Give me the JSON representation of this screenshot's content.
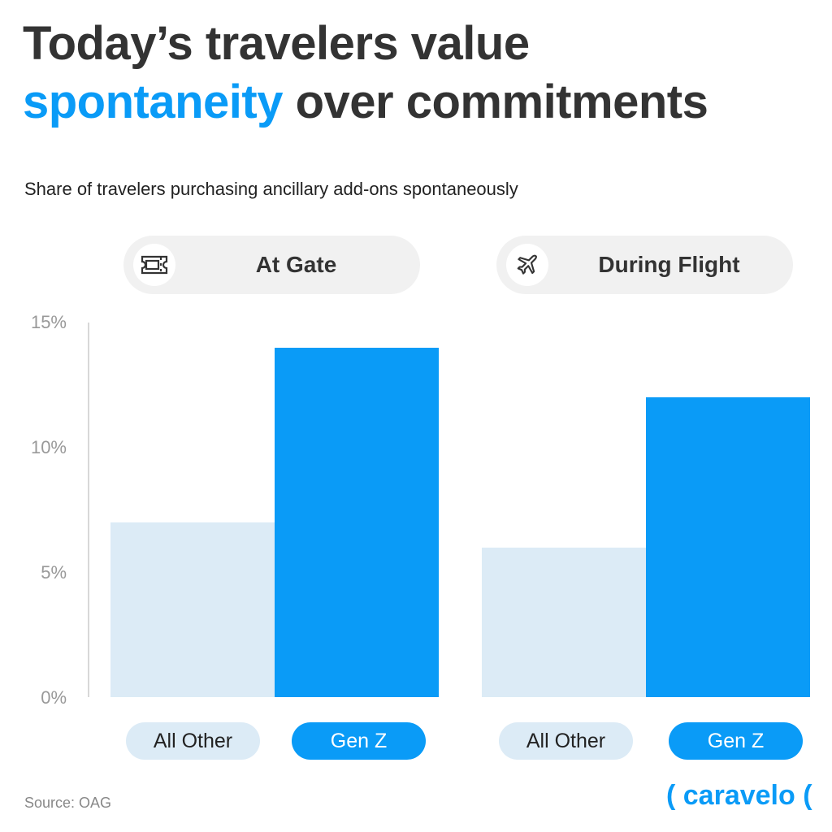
{
  "title": {
    "line1": "Today’s travelers value",
    "highlight": "spontaneity",
    "line2_rest": " over commitments"
  },
  "subtitle": "Share of travelers purchasing ancillary add-ons spontaneously",
  "source": "Source: OAG",
  "logo": "( caravelo (",
  "colors": {
    "accent": "#0a9bf7",
    "other": "#dcebf6"
  },
  "chart_data": {
    "type": "bar",
    "title": "Share of travelers purchasing ancillary add-ons spontaneously",
    "ylim": [
      0,
      15
    ],
    "yticks": [
      "0%",
      "5%",
      "10%",
      "15%"
    ],
    "panels": [
      {
        "name": "At Gate",
        "icon": "ticket-icon",
        "categories": [
          "All Other",
          "Gen Z"
        ],
        "values": [
          7,
          14
        ]
      },
      {
        "name": "During Flight",
        "icon": "airplane-icon",
        "categories": [
          "All Other",
          "Gen Z"
        ],
        "values": [
          6,
          12
        ]
      }
    ]
  }
}
